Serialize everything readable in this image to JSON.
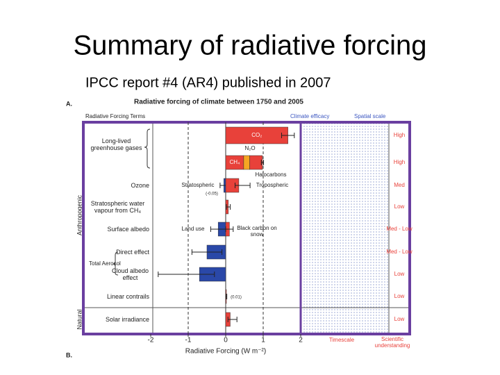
{
  "title": "Summary of radiative forcing",
  "subtitle": "IPCC report #4 (AR4) published in 2007",
  "chart_data": {
    "type": "hbar",
    "panel_label": "A.",
    "next_panel_label": "B.",
    "title": "Radiative forcing of climate between 1750 and 2005",
    "column_headers": [
      "Radiative Forcing Terms",
      "Climate efficacy",
      "Spatial scale"
    ],
    "groups": [
      "Anthropogenic",
      "Natural"
    ],
    "aerosol_label": "Total Aerosol",
    "xlabel": "Radiative Forcing (W m⁻²)",
    "xlim": [
      -2,
      2
    ],
    "xticks": [
      -2,
      -1,
      0,
      1,
      2
    ],
    "footer_labels": [
      "Timescale",
      "Scientific understanding"
    ],
    "positive_color": "#e8413a",
    "negative_color": "#2a48a8",
    "rows": [
      {
        "label": "Long-lived greenhouse gases",
        "scale": "High",
        "stacked": false,
        "bars": [
          {
            "label": "CO₂",
            "value": 1.66,
            "range": [
              1.49,
              1.83
            ],
            "color": "#e8413a"
          }
        ]
      },
      {
        "label": null,
        "scale": "High",
        "stacked": true,
        "bars": [
          {
            "label": "CH₄",
            "value": 0.48,
            "color": "#e8413a"
          },
          {
            "label": "N₂O",
            "value": 0.16,
            "color": "#f5a623"
          },
          {
            "label": "Halocarbons",
            "value": 0.34,
            "range": [
              0.31,
              0.37
            ],
            "color": "#e8413a"
          }
        ]
      },
      {
        "label": "Ozone",
        "scale": "Med",
        "stacked": false,
        "bars": [
          {
            "label": "Stratospheric",
            "value": -0.05,
            "value_label": "(-0.05)",
            "range": [
              -0.15,
              0.05
            ],
            "color": "#2a48a8"
          },
          {
            "label": "Tropospheric",
            "value": 0.35,
            "range": [
              0.25,
              0.65
            ],
            "color": "#e8413a"
          }
        ]
      },
      {
        "label": "Stratospheric water vapour from CH₄",
        "scale": "Low",
        "stacked": false,
        "bars": [
          {
            "value": 0.07,
            "range": [
              0.02,
              0.12
            ],
            "color": "#e8413a"
          }
        ]
      },
      {
        "label": "Surface albedo",
        "scale": "Med - Low",
        "stacked": false,
        "bars": [
          {
            "label": "Land use",
            "value": -0.2,
            "range": [
              -0.4,
              0
            ],
            "color": "#2a48a8"
          },
          {
            "label": "Black carbon on snow",
            "value": 0.1,
            "range": [
              0,
              0.2
            ],
            "color": "#e8413a"
          }
        ]
      },
      {
        "label": "Direct effect",
        "scale": "Med - Low",
        "stacked": false,
        "bars": [
          {
            "value": -0.5,
            "range": [
              -0.9,
              -0.1
            ],
            "color": "#2a48a8"
          }
        ]
      },
      {
        "label": "Cloud albedo effect",
        "scale": "Low",
        "stacked": false,
        "bars": [
          {
            "value": -0.7,
            "range": [
              -1.8,
              -0.3
            ],
            "color": "#2a48a8"
          }
        ]
      },
      {
        "label": "Linear contrails",
        "scale": "Low",
        "stacked": false,
        "bars": [
          {
            "value": 0.01,
            "value_label": "(0.01)",
            "range": [
              0.003,
              0.03
            ],
            "color": "#e8413a"
          }
        ]
      },
      {
        "label": "Solar irradiance",
        "scale": "Low",
        "stacked": false,
        "bars": [
          {
            "value": 0.12,
            "range": [
              0.06,
              0.3
            ],
            "color": "#e8413a"
          }
        ]
      }
    ]
  }
}
